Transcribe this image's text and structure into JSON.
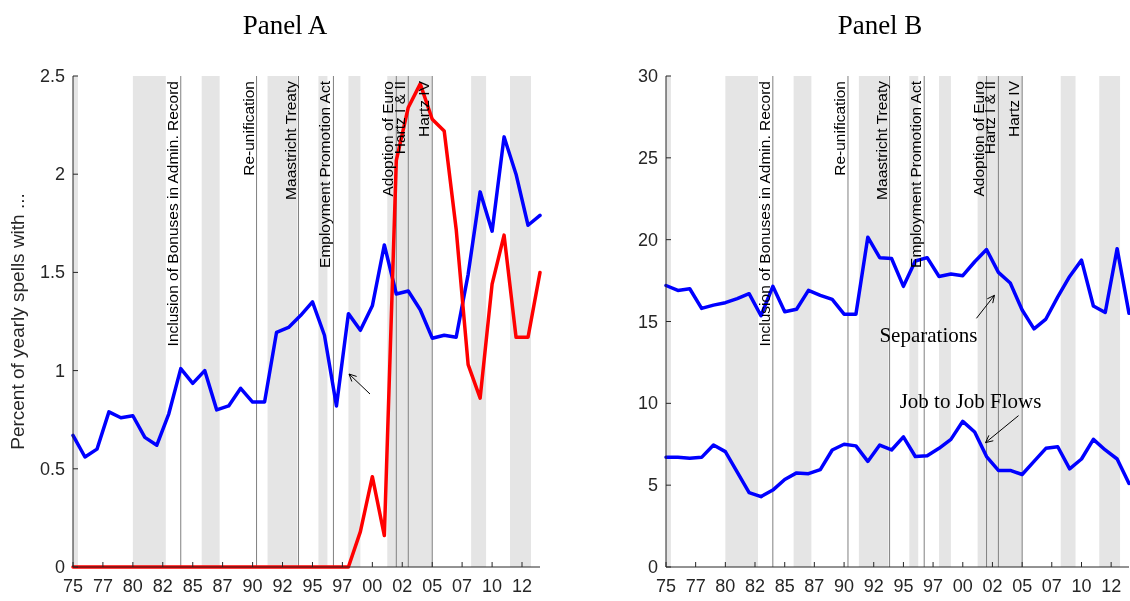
{
  "chart_data": [
    {
      "type": "line",
      "title": "Panel A",
      "ylabel": "Percent of yearly spells with ...",
      "x": [
        "1975",
        "1976",
        "1977",
        "1978",
        "1979",
        "1980",
        "1981",
        "1982",
        "1983",
        "1984",
        "1985",
        "1986",
        "1987",
        "1988",
        "1989",
        "1990",
        "1991",
        "1992",
        "1993",
        "1994",
        "1995",
        "1996",
        "1997",
        "1998",
        "1999",
        "2000",
        "2001",
        "2002",
        "2003",
        "2004",
        "2005",
        "2006",
        "2007",
        "2008",
        "2009",
        "2010",
        "2011",
        "2012",
        "2013",
        "2014"
      ],
      "series": [
        {
          "color": "#0000ff",
          "values": [
            0.67,
            0.56,
            0.6,
            0.79,
            0.76,
            0.77,
            0.66,
            0.62,
            0.78,
            1.01,
            0.935,
            1.0,
            0.8,
            0.82,
            0.91,
            0.84,
            0.84,
            1.195,
            1.22,
            1.28,
            1.35,
            1.18,
            0.82,
            1.29,
            1.205,
            1.33,
            1.64,
            1.39,
            1.405,
            1.31,
            1.165,
            1.18,
            1.17,
            1.49,
            1.91,
            1.71,
            2.19,
            2.0,
            1.74,
            1.79
          ]
        },
        {
          "color": "#ff0000",
          "values": [
            0,
            0,
            0,
            0,
            0,
            0,
            0,
            0,
            0,
            0,
            0,
            0,
            0,
            0,
            0,
            0,
            0,
            0,
            0,
            0,
            0,
            0,
            0,
            0,
            0.18,
            0.46,
            0.16,
            2.07,
            2.34,
            2.46,
            2.28,
            2.22,
            1.72,
            1.03,
            0.86,
            1.44,
            1.69,
            1.17,
            1.17,
            1.5
          ]
        }
      ],
      "xlim": [
        "1975",
        "2014"
      ],
      "ylim": [
        0,
        2.5
      ],
      "yticks": [
        0,
        0.5,
        1,
        1.5,
        2,
        2.5
      ],
      "xticks": [
        {
          "value": "1975",
          "label": "75"
        },
        {
          "value": "1977-07",
          "label": "77"
        },
        {
          "value": "1980",
          "label": "80"
        },
        {
          "value": "1982-07",
          "label": "82"
        },
        {
          "value": "1985",
          "label": "85"
        },
        {
          "value": "1987-07",
          "label": "87"
        },
        {
          "value": "1990",
          "label": "90"
        },
        {
          "value": "1992-07",
          "label": "92"
        },
        {
          "value": "1995",
          "label": "95"
        },
        {
          "value": "1997-07",
          "label": "97"
        },
        {
          "value": "2000",
          "label": "00"
        },
        {
          "value": "2002-07",
          "label": "02"
        },
        {
          "value": "2005",
          "label": "05"
        },
        {
          "value": "2007-07",
          "label": "07"
        },
        {
          "value": "2010",
          "label": "10"
        },
        {
          "value": "2012-07",
          "label": "12"
        }
      ],
      "bands": [
        {
          "axis": "x",
          "from": "1975-01",
          "to": "1975-06",
          "color": "#e5e5e5"
        },
        {
          "axis": "x",
          "from": "1980-01",
          "to": "1982-10",
          "color": "#e5e5e5"
        },
        {
          "axis": "x",
          "from": "1985-10",
          "to": "1987-04",
          "color": "#e5e5e5"
        },
        {
          "axis": "x",
          "from": "1991-04",
          "to": "1993-10",
          "color": "#e5e5e5"
        },
        {
          "axis": "x",
          "from": "1995-07",
          "to": "1996-04",
          "color": "#e5e5e5"
        },
        {
          "axis": "x",
          "from": "1998-01",
          "to": "1999-01",
          "color": "#e5e5e5"
        },
        {
          "axis": "x",
          "from": "2001-04",
          "to": "2005-01",
          "color": "#e5e5e5"
        },
        {
          "axis": "x",
          "from": "2008-04",
          "to": "2009-07",
          "color": "#e5e5e5"
        },
        {
          "axis": "x",
          "from": "2011-07",
          "to": "2013-04",
          "color": "#e5e5e5"
        }
      ],
      "ref_lines": [
        {
          "axis": "x",
          "value": "1984-01",
          "label": "Inclusion of Bonuses in Admin. Record",
          "color": "#808080"
        },
        {
          "axis": "x",
          "value": "1990-05",
          "label": "Re-unification",
          "color": "#808080"
        },
        {
          "axis": "x",
          "value": "1993-11",
          "label": "Maastricht Treaty",
          "color": "#808080"
        },
        {
          "axis": "x",
          "value": "1996-10",
          "label": "Employment Promotion Act",
          "color": "#808080"
        },
        {
          "axis": "x",
          "value": "2002-01",
          "label": "Adoption of Euro",
          "color": "#808080"
        },
        {
          "axis": "x",
          "value": "2003-01",
          "label": "Hartz I & II",
          "color": "#808080"
        },
        {
          "axis": "x",
          "value": "2005-01",
          "label": "Hartz IV",
          "color": "#808080"
        }
      ]
    },
    {
      "type": "line",
      "title": "Panel B",
      "x": [
        "1975",
        "1976",
        "1977",
        "1978",
        "1979",
        "1980",
        "1981",
        "1982",
        "1983",
        "1984",
        "1985",
        "1986",
        "1987",
        "1988",
        "1989",
        "1990",
        "1991",
        "1992",
        "1993",
        "1994",
        "1995",
        "1996",
        "1997",
        "1998",
        "1999",
        "2000",
        "2001",
        "2002",
        "2003",
        "2004",
        "2005",
        "2006",
        "2007",
        "2008",
        "2009",
        "2010",
        "2011",
        "2012",
        "2013",
        "2014"
      ],
      "series": [
        {
          "color": "#0000ff",
          "values": [
            17.2,
            16.9,
            17.0,
            15.8,
            16.0,
            16.15,
            16.4,
            16.7,
            15.35,
            17.15,
            15.6,
            15.75,
            16.9,
            16.6,
            16.35,
            15.45,
            15.45,
            20.15,
            18.9,
            18.85,
            17.15,
            18.7,
            18.9,
            17.75,
            17.9,
            17.8,
            18.65,
            19.4,
            18.0,
            17.35,
            15.7,
            14.55,
            15.15,
            16.5,
            17.75,
            18.75,
            15.95,
            15.55,
            19.45,
            15.5
          ]
        },
        {
          "color": "#0000ff",
          "values": [
            6.7,
            6.7,
            6.65,
            6.7,
            7.45,
            7.05,
            5.8,
            4.55,
            4.3,
            4.7,
            5.35,
            5.75,
            5.7,
            5.95,
            7.15,
            7.5,
            7.4,
            6.45,
            7.45,
            7.15,
            7.95,
            6.75,
            6.8,
            7.25,
            7.8,
            8.9,
            8.25,
            6.75,
            5.9,
            5.9,
            5.65,
            6.45,
            7.25,
            7.35,
            6.0,
            6.6,
            7.8,
            7.15,
            6.6,
            5.1
          ]
        }
      ],
      "xlim": [
        "1975",
        "2014"
      ],
      "ylim": [
        0,
        30
      ],
      "yticks": [
        0,
        5,
        10,
        15,
        20,
        25,
        30
      ],
      "xticks": [
        {
          "value": "1975",
          "label": "75"
        },
        {
          "value": "1977-07",
          "label": "77"
        },
        {
          "value": "1980",
          "label": "80"
        },
        {
          "value": "1982-07",
          "label": "82"
        },
        {
          "value": "1985",
          "label": "85"
        },
        {
          "value": "1987-07",
          "label": "87"
        },
        {
          "value": "1990",
          "label": "90"
        },
        {
          "value": "1992-07",
          "label": "92"
        },
        {
          "value": "1995",
          "label": "95"
        },
        {
          "value": "1997-07",
          "label": "97"
        },
        {
          "value": "2000",
          "label": "00"
        },
        {
          "value": "2002-07",
          "label": "02"
        },
        {
          "value": "2005",
          "label": "05"
        },
        {
          "value": "2007-07",
          "label": "07"
        },
        {
          "value": "2010",
          "label": "10"
        },
        {
          "value": "2012-07",
          "label": "12"
        }
      ],
      "bands": [
        {
          "axis": "x",
          "from": "1975-01",
          "to": "1975-06",
          "color": "#e5e5e5"
        },
        {
          "axis": "x",
          "from": "1980-01",
          "to": "1982-10",
          "color": "#e5e5e5"
        },
        {
          "axis": "x",
          "from": "1985-10",
          "to": "1987-04",
          "color": "#e5e5e5"
        },
        {
          "axis": "x",
          "from": "1991-04",
          "to": "1993-10",
          "color": "#e5e5e5"
        },
        {
          "axis": "x",
          "from": "1995-07",
          "to": "1996-04",
          "color": "#e5e5e5"
        },
        {
          "axis": "x",
          "from": "1998-01",
          "to": "1999-01",
          "color": "#e5e5e5"
        },
        {
          "axis": "x",
          "from": "2001-04",
          "to": "2005-01",
          "color": "#e5e5e5"
        },
        {
          "axis": "x",
          "from": "2008-04",
          "to": "2009-07",
          "color": "#e5e5e5"
        },
        {
          "axis": "x",
          "from": "2011-07",
          "to": "2013-04",
          "color": "#e5e5e5"
        }
      ],
      "ref_lines": [
        {
          "axis": "x",
          "value": "1984-01",
          "label": "Inclusion of Bonuses in Admin. Record",
          "color": "#808080"
        },
        {
          "axis": "x",
          "value": "1990-05",
          "label": "Re-unification",
          "color": "#808080"
        },
        {
          "axis": "x",
          "value": "1993-11",
          "label": "Maastricht Treaty",
          "color": "#808080"
        },
        {
          "axis": "x",
          "value": "1996-10",
          "label": "Employment Promotion Act",
          "color": "#808080"
        },
        {
          "axis": "x",
          "value": "2002-01",
          "label": "Adoption of Euro",
          "color": "#808080"
        },
        {
          "axis": "x",
          "value": "2003-01",
          "label": "Hartz I & II",
          "color": "#808080"
        },
        {
          "axis": "x",
          "value": "2005-01",
          "label": "Hartz IV",
          "color": "#808080"
        }
      ],
      "annotations": [
        {
          "text": "Separations",
          "x": "2002-09",
          "y": 16.6
        },
        {
          "text": "Job to Job Flows",
          "x": "2001-12",
          "y": 7.6
        }
      ]
    }
  ]
}
